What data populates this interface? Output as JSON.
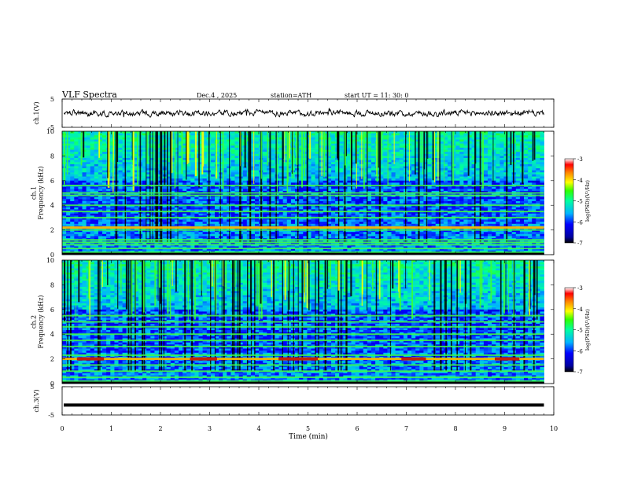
{
  "header": {
    "title": "VLF  Spectra",
    "date": "Dec.4  , 2025",
    "station": "station=ATH",
    "start": "start  UT  =    11: 30: 0"
  },
  "chart_data": [
    {
      "type": "line",
      "panel": "ch1-waveform",
      "ylabel": "ch.1(V)",
      "ylim": [
        -5,
        5
      ],
      "yticks": [
        "5",
        "-5"
      ],
      "xlim": [
        0,
        10
      ],
      "x_end": 9.8,
      "trace_level": 0,
      "trace_amplitude_approx": 0.8,
      "color": "#000000"
    },
    {
      "type": "heatmap",
      "panel": "ch1-spectrogram",
      "ylabel": "ch.1\nFrequency  (kHz)",
      "ylim": [
        0,
        10
      ],
      "yticks": [
        "0",
        "2",
        "4",
        "6",
        "8",
        "10"
      ],
      "xlim": [
        0,
        10
      ],
      "x_end": 9.8,
      "colorbar": {
        "label": "log(PSD)(V²/Hz)",
        "ticks": [
          "-3",
          "-4",
          "-5",
          "-6",
          "-7"
        ],
        "range": [
          -7,
          -3
        ]
      },
      "bands_khz": [
        0.2,
        0.5,
        0.8,
        1.0,
        1.2,
        2.0,
        2.2,
        3.0,
        3.5,
        4.0,
        4.8,
        5.0,
        5.6
      ],
      "hot_band_khz": 2.2,
      "bright_region_khz": [
        6.0,
        10.0
      ]
    },
    {
      "type": "heatmap",
      "panel": "ch2-spectrogram",
      "ylabel": "ch.2\nFrequency  (kHz)",
      "ylim": [
        0,
        10
      ],
      "yticks": [
        "0",
        "2",
        "4",
        "6",
        "8",
        "10"
      ],
      "xlim": [
        0,
        10
      ],
      "x_end": 9.8,
      "colorbar": {
        "label": "log(PSD)(V²/Hz)",
        "ticks": [
          "-3",
          "-4",
          "-5",
          "-6",
          "-7"
        ],
        "range": [
          -7,
          -3
        ]
      },
      "bands_khz": [
        0.2,
        0.5,
        1.0,
        1.5,
        2.0,
        2.3,
        3.0,
        3.5,
        4.0,
        4.6,
        5.0,
        5.5
      ],
      "hot_band_khz": 2.0,
      "hot_segments_min": [
        [
          0.3,
          0.85
        ],
        [
          2.6,
          3.15
        ],
        [
          4.4,
          5.2
        ],
        [
          6.9,
          7.4
        ],
        [
          8.8,
          9.3
        ]
      ],
      "bright_region_khz": [
        6.0,
        10.0
      ]
    },
    {
      "type": "line",
      "panel": "ch3-waveform",
      "ylabel": "ch.3(V)",
      "ylim": [
        -5,
        5
      ],
      "yticks": [
        "5",
        "-5"
      ],
      "xlim": [
        0,
        10
      ],
      "x_end": 9.8,
      "trace_level": -1.5,
      "color": "#000000"
    }
  ],
  "xaxis": {
    "label": "Time  (min)",
    "ticks": [
      "0",
      "1",
      "2",
      "3",
      "4",
      "5",
      "6",
      "7",
      "8",
      "9",
      "10"
    ],
    "range": [
      0,
      10
    ]
  }
}
